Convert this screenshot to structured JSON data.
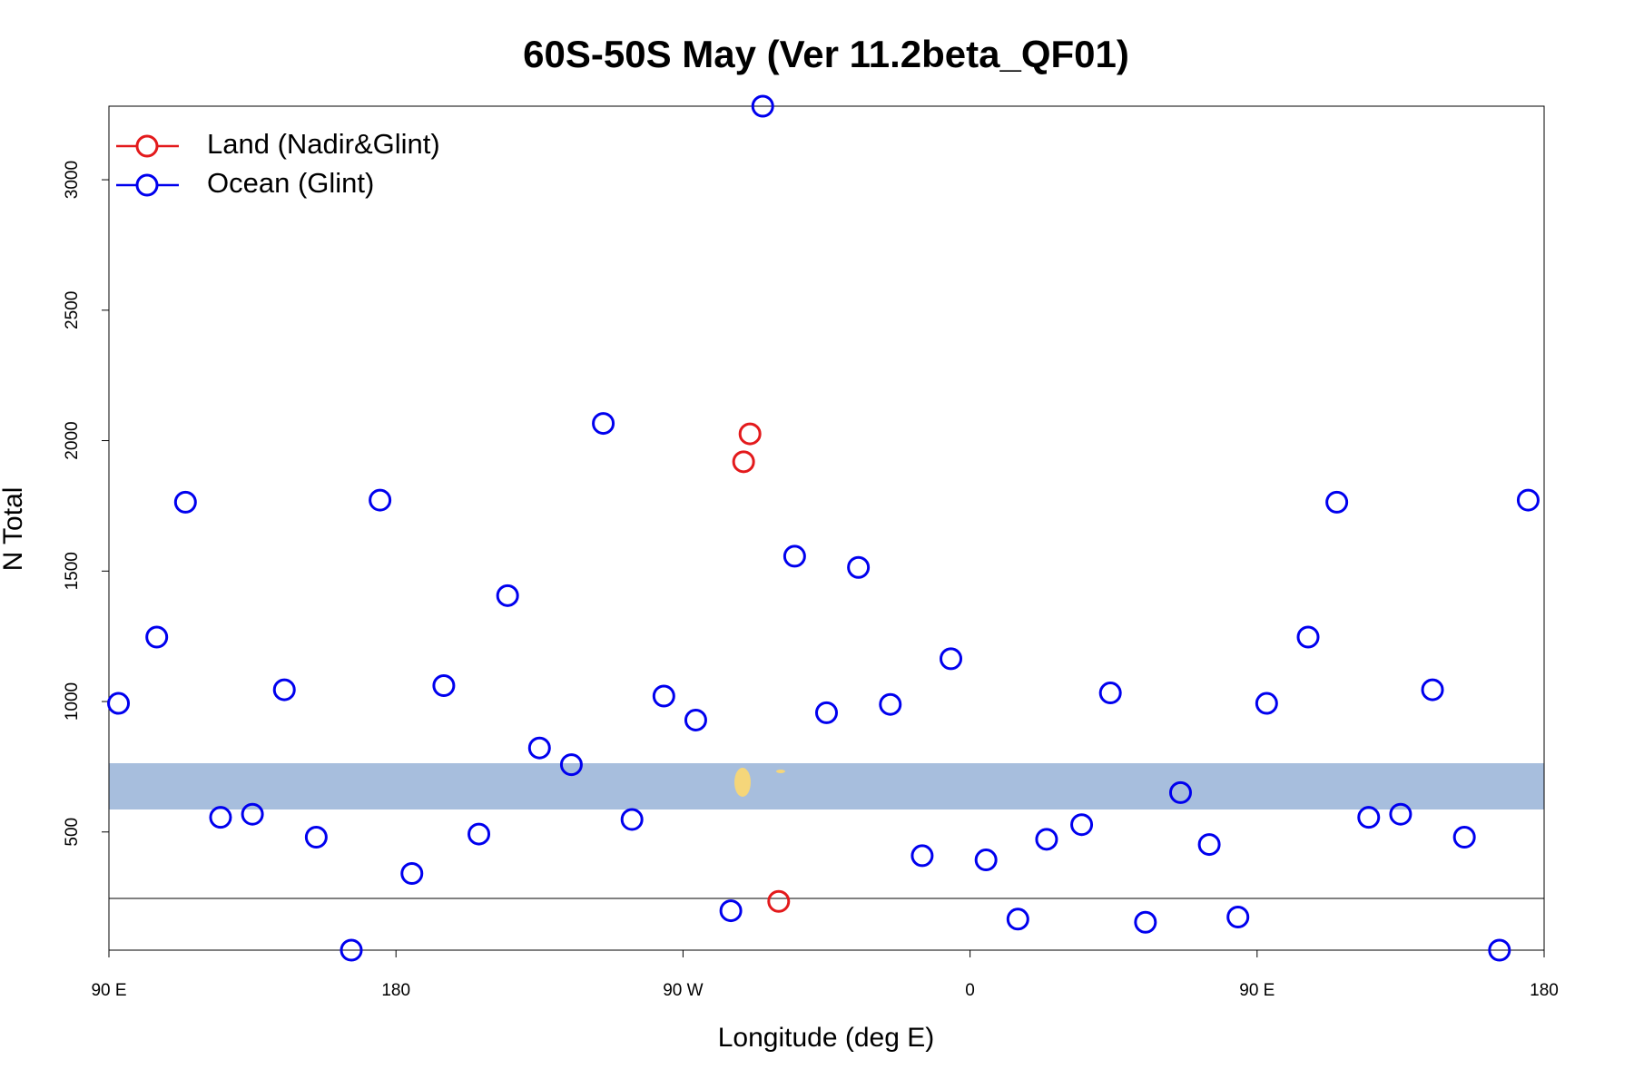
{
  "chart_data": {
    "type": "scatter",
    "title": "60S-50S May (Ver 11.2beta_QF01)",
    "x_label": "Longitude (deg E)",
    "y_label": "N Total",
    "xlim": [
      90,
      540
    ],
    "ylim": [
      47,
      3282
    ],
    "xticks": [
      {
        "value": 90,
        "label": "90 E"
      },
      180,
      {
        "value": 270,
        "label": "90 W"
      },
      {
        "value": 360,
        "label": "0"
      },
      {
        "value": 450,
        "label": "90 E"
      },
      {
        "value": 540,
        "label": "180"
      }
    ],
    "yticks": [
      500,
      1000,
      1500,
      2000,
      2500,
      3000
    ],
    "legend": "top-left",
    "series": [
      {
        "name": "Land (Nadir&Glint)",
        "color": "#e31a1c",
        "x": [
          289,
          291,
          300
        ],
        "values": [
          1919,
          2026,
          234
        ]
      },
      {
        "name": "Ocean (Glint)",
        "color": "#0000ee",
        "x": [
          93,
          105,
          114,
          125,
          135,
          145,
          155,
          166,
          175,
          185,
          195,
          206,
          215,
          225,
          235,
          245,
          254,
          264,
          274,
          285,
          295,
          305,
          315,
          325,
          335,
          345,
          354,
          365,
          375,
          384,
          395,
          404,
          415,
          426,
          435,
          444,
          453,
          466,
          475,
          485,
          495,
          505,
          515,
          526,
          535
        ],
        "values": [
          993,
          1247,
          1764,
          556,
          568,
          1045,
          480,
          47,
          1772,
          341,
          1061,
          492,
          1406,
          822,
          758,
          2066,
          548,
          1021,
          929,
          198,
          3282,
          1557,
          957,
          1514,
          989,
          409,
          1164,
          393,
          166,
          472,
          528,
          1033,
          154,
          651,
          452,
          174,
          993,
          1247,
          1764,
          556,
          568,
          1045,
          480,
          47,
          1772
        ]
      }
    ]
  }
}
